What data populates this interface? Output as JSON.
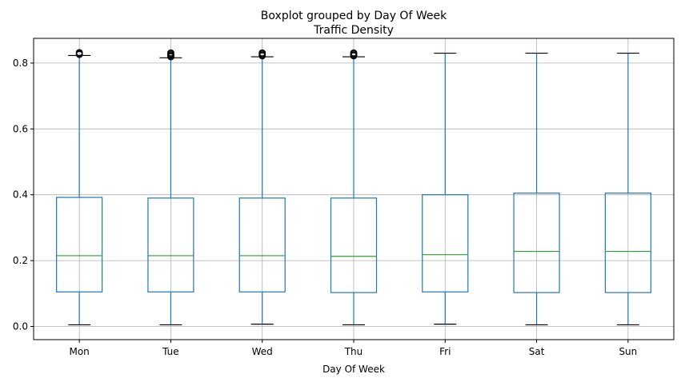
{
  "chart_data": {
    "type": "boxplot",
    "suptitle": "Boxplot grouped by Day Of Week",
    "title": "Traffic Density",
    "xlabel": "Day Of Week",
    "ylabel": "",
    "ylim": [
      -0.04,
      0.875
    ],
    "yticks": [
      0.0,
      0.2,
      0.4,
      0.6,
      0.8
    ],
    "ytick_labels": [
      "0.0",
      "0.2",
      "0.4",
      "0.6",
      "0.8"
    ],
    "grid": true,
    "categories": [
      "Mon",
      "Tue",
      "Wed",
      "Thu",
      "Fri",
      "Sat",
      "Sun"
    ],
    "boxes": [
      {
        "label": "Mon",
        "whislo": 0.005,
        "q1": 0.105,
        "med": 0.215,
        "q3": 0.392,
        "whishi": 0.823,
        "fliers": [
          0.826,
          0.829,
          0.832
        ]
      },
      {
        "label": "Tue",
        "whislo": 0.005,
        "q1": 0.105,
        "med": 0.215,
        "q3": 0.39,
        "whishi": 0.816,
        "fliers": [
          0.819,
          0.822,
          0.825,
          0.828,
          0.831
        ]
      },
      {
        "label": "Wed",
        "whislo": 0.007,
        "q1": 0.105,
        "med": 0.215,
        "q3": 0.39,
        "whishi": 0.819,
        "fliers": [
          0.822,
          0.825,
          0.828,
          0.831
        ]
      },
      {
        "label": "Thu",
        "whislo": 0.005,
        "q1": 0.103,
        "med": 0.213,
        "q3": 0.39,
        "whishi": 0.819,
        "fliers": [
          0.822,
          0.825,
          0.828,
          0.831
        ]
      },
      {
        "label": "Fri",
        "whislo": 0.007,
        "q1": 0.105,
        "med": 0.218,
        "q3": 0.4,
        "whishi": 0.83,
        "fliers": []
      },
      {
        "label": "Sat",
        "whislo": 0.005,
        "q1": 0.103,
        "med": 0.228,
        "q3": 0.405,
        "whishi": 0.83,
        "fliers": []
      },
      {
        "label": "Sun",
        "whislo": 0.005,
        "q1": 0.103,
        "med": 0.228,
        "q3": 0.405,
        "whishi": 0.83,
        "fliers": []
      }
    ],
    "colors": {
      "box": "#1f77b4",
      "median": "#2ca02c",
      "cap": "#000000",
      "flier": "#000000",
      "grid": "#b0b0b0"
    }
  }
}
